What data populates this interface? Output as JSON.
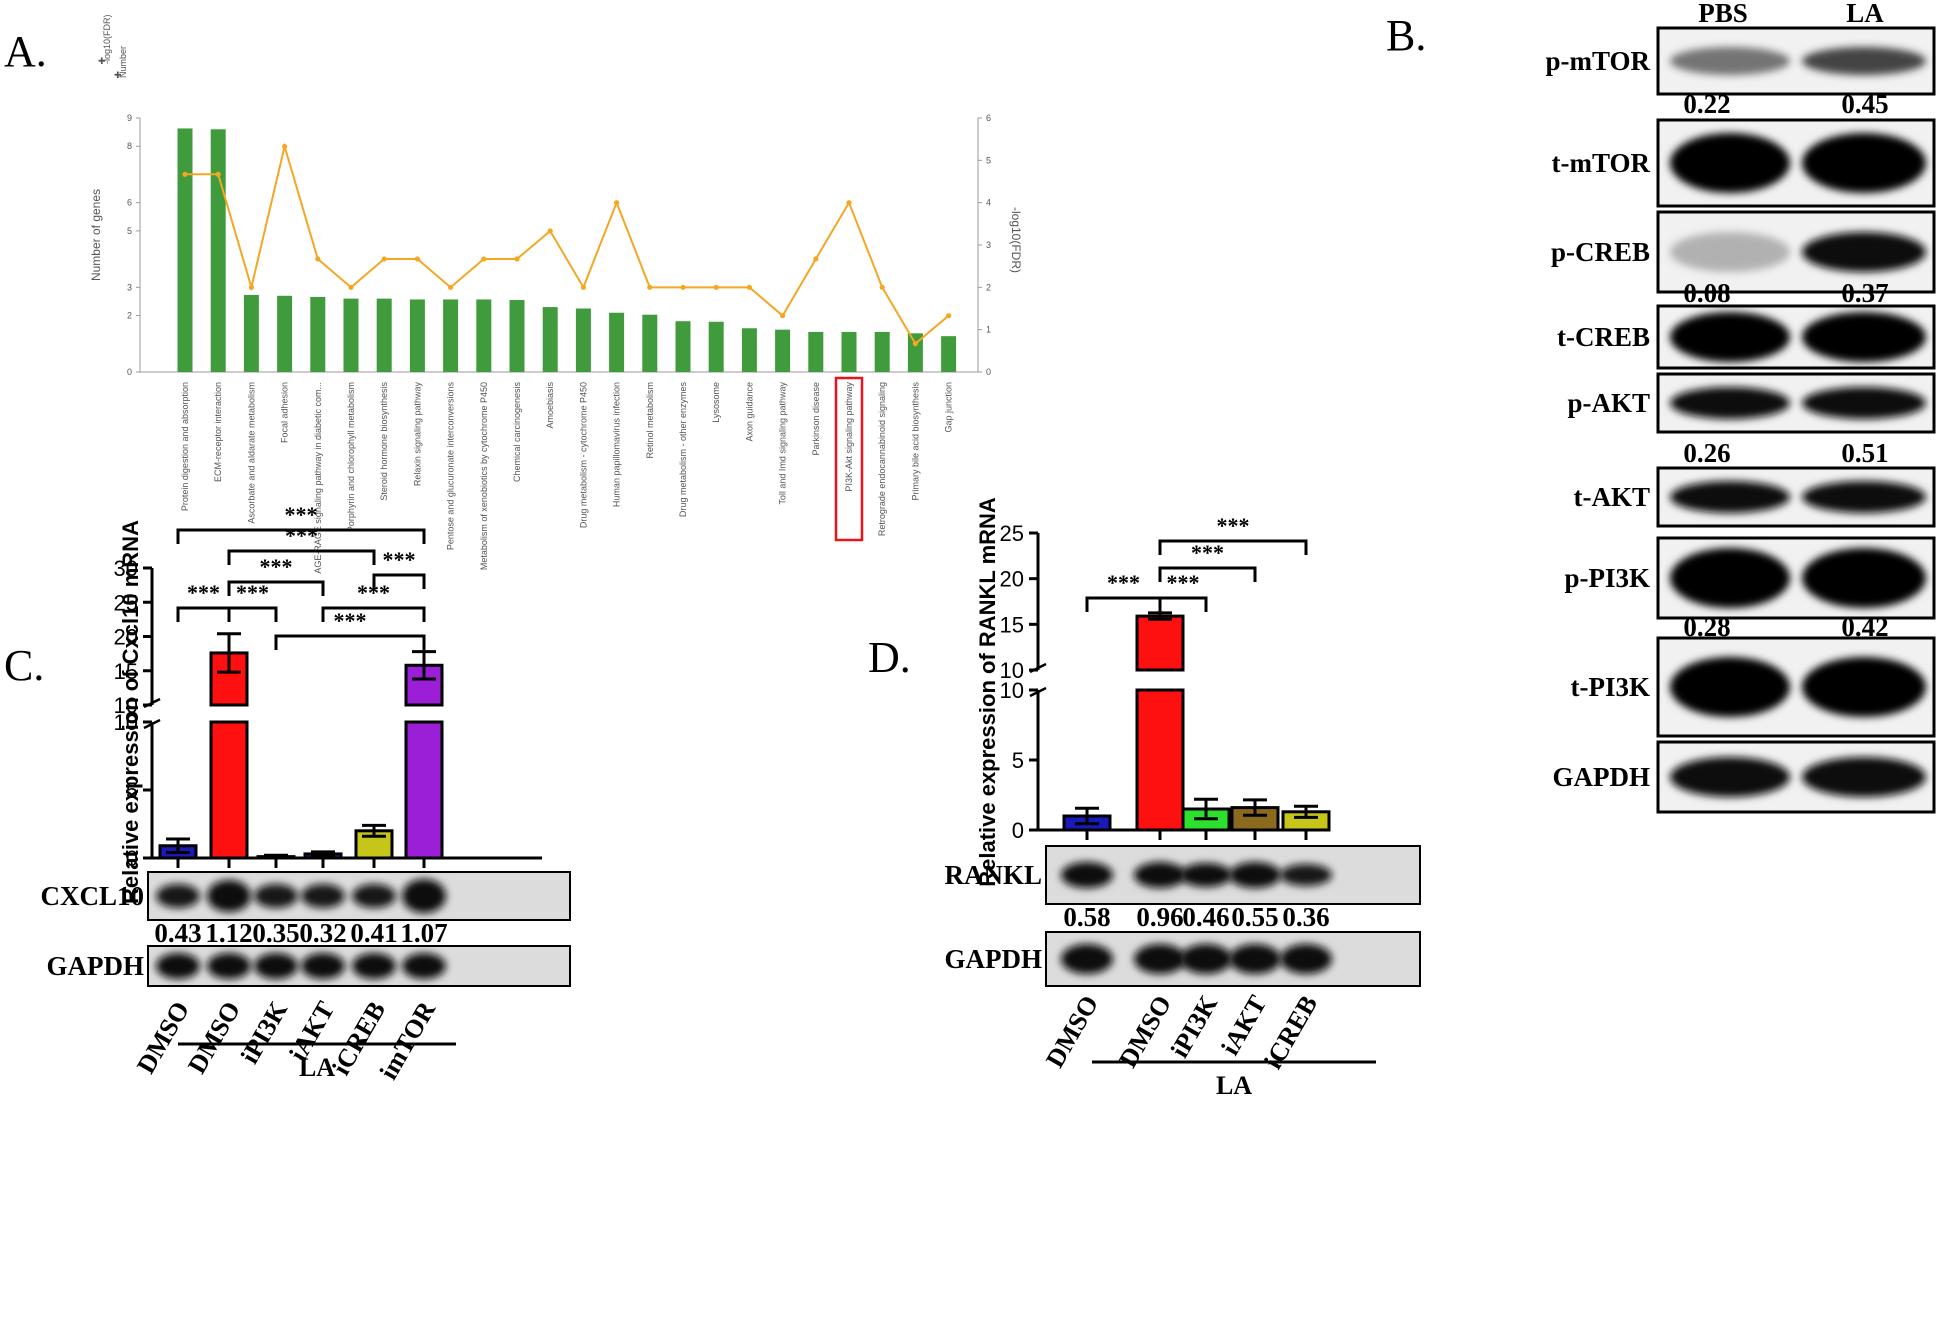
{
  "panels": {
    "a": "A.",
    "b": "B.",
    "c": "C.",
    "d": "D."
  },
  "colors": {
    "kegg_bar": "#3f9b3b",
    "kegg_line": "#f5a623",
    "kegg_axis": "#9a9a9a",
    "highlight_box": "#e8141b",
    "c_bars": [
      "#1a1ab8",
      "#ff1010",
      "#1a1ab8",
      "#1a1ab8",
      "#c5c51a",
      "#9b1fd6"
    ],
    "d_bars": [
      "#1a1ab8",
      "#ff1010",
      "#2de02d",
      "#8b6a1e",
      "#c5c51a"
    ]
  },
  "chart_data": [
    {
      "id": "A",
      "type": "bar",
      "title": "",
      "legend": [
        "-log10(FDR)",
        "Number"
      ],
      "xlabel": "",
      "ylabel": "Number of genes",
      "y2label": "-log10(FDR)",
      "ylim": [
        0,
        9
      ],
      "y2lim": [
        0,
        6
      ],
      "yticks": [
        0,
        2,
        3,
        5,
        6,
        8,
        9
      ],
      "y2ticks": [
        0,
        1,
        2,
        3,
        4,
        5,
        6
      ],
      "categories": [
        "Protein digestion and absorption",
        "ECM-receptor interaction",
        "Ascorbate and aldarate metabolism",
        "Focal adhesion",
        "AGE-RAGE signaling pathway in diabetic com...",
        "Porphyrin and chlorophyll metabolism",
        "Steroid hormone biosynthesis",
        "Relaxin signaling pathway",
        "Pentose and glucuronate interconversions",
        "Metabolism of xenobiotics by cytochrome P450",
        "Chemical carcinogenesis",
        "Amoebiasis",
        "Drug metabolism - cytochrome P450",
        "Human papillomavirus infection",
        "Retinol metabolism",
        "Drug metabolism - other enzymes",
        "Lysosome",
        "Axon guidance",
        "Toll and Imd signaling pathway",
        "Parkinson disease",
        "PI3K-Akt signaling pathway",
        "Retrograde endocannabinoid signaling",
        "Primary bile acid biosynthesis",
        "Gap junction"
      ],
      "highlighted_category": "PI3K-Akt signaling pathway",
      "series": [
        {
          "name": "-log10(FDR)",
          "kind": "bar",
          "axis": "left",
          "values": [
            8.63,
            8.6,
            2.73,
            2.7,
            2.66,
            2.6,
            2.6,
            2.57,
            2.57,
            2.57,
            2.55,
            2.3,
            2.25,
            2.1,
            2.03,
            1.8,
            1.78,
            1.55,
            1.5,
            1.42,
            1.42,
            1.42,
            1.37,
            1.27
          ]
        },
        {
          "name": "Number",
          "kind": "line",
          "axis": "right",
          "values": [
            4.67,
            4.67,
            2,
            5.33,
            2.67,
            2,
            2.67,
            2.67,
            2,
            2.67,
            2.67,
            3.33,
            2,
            4,
            2,
            2,
            2,
            2,
            1.33,
            2.67,
            4,
            2,
            0.67,
            1.33
          ]
        }
      ]
    },
    {
      "id": "C",
      "type": "bar",
      "title": "",
      "ylabel": "Relative expression of Cxcl10 mRNA",
      "axis_break": [
        10,
        10
      ],
      "ylim_lower": [
        0,
        10
      ],
      "ylim_upper": [
        10,
        30
      ],
      "yticks_lower": [
        0,
        5,
        10
      ],
      "yticks_upper": [
        10,
        15,
        20,
        25,
        30
      ],
      "categories": [
        "DMSO",
        "DMSO",
        "iPI3K",
        "iAKT",
        "iCREB",
        "imTOR"
      ],
      "group_label": "LA",
      "series": [
        {
          "name": "Cxcl10 mRNA",
          "values": [
            0.9,
            17.6,
            0.1,
            0.3,
            2.0,
            15.8
          ],
          "errors": [
            0.5,
            2.8,
            0.1,
            0.15,
            0.4,
            2.0
          ]
        }
      ],
      "significance": [
        {
          "from": 0,
          "to": 5,
          "label": "***"
        },
        {
          "from": 1,
          "to": 4,
          "label": "***"
        },
        {
          "from": 1,
          "to": 3,
          "label": "***"
        },
        {
          "from": 4,
          "to": 5,
          "label": "***"
        },
        {
          "from": 0,
          "to": 1,
          "label": "***"
        },
        {
          "from": 1,
          "to": 2,
          "label": "***"
        },
        {
          "from": 3,
          "to": 5,
          "label": "***"
        },
        {
          "from": 2,
          "to": 5,
          "label": "***"
        }
      ],
      "blot_labels": [
        "CXCL10",
        "GAPDH"
      ],
      "quant": [
        "0.43",
        "1.12",
        "0.35",
        "0.32",
        "0.41",
        "1.07"
      ]
    },
    {
      "id": "D",
      "type": "bar",
      "title": "",
      "ylabel": "Relative expression of RANKL mRNA",
      "axis_break": [
        10,
        10
      ],
      "ylim_lower": [
        0,
        10
      ],
      "ylim_upper": [
        10,
        25
      ],
      "yticks_lower": [
        0,
        5,
        10
      ],
      "yticks_upper": [
        10,
        15,
        20,
        25
      ],
      "categories": [
        "DMSO",
        "DMSO",
        "iPI3K",
        "iAKT",
        "iCREB"
      ],
      "group_label": "LA",
      "series": [
        {
          "name": "RANKL mRNA",
          "values": [
            1.0,
            15.9,
            1.5,
            1.6,
            1.3
          ],
          "errors": [
            0.55,
            0.35,
            0.7,
            0.55,
            0.4
          ]
        }
      ],
      "significance": [
        {
          "from": 1,
          "to": 4,
          "label": "***"
        },
        {
          "from": 1,
          "to": 3,
          "label": "***"
        },
        {
          "from": 0,
          "to": 1,
          "label": "***"
        },
        {
          "from": 1,
          "to": 2,
          "label": "***"
        }
      ],
      "blot_labels": [
        "RANKL",
        "GAPDH"
      ],
      "quant": [
        "0.58",
        "0.96",
        "0.46",
        "0.55",
        "0.36"
      ]
    },
    {
      "id": "B",
      "type": "table",
      "columns": [
        "PBS",
        "LA"
      ],
      "rows": [
        {
          "label": "p-mTOR",
          "quant": [
            "0.22",
            "0.45"
          ]
        },
        {
          "label": "t-mTOR"
        },
        {
          "label": "p-CREB",
          "quant": [
            "0.08",
            "0.37"
          ]
        },
        {
          "label": "t-CREB"
        },
        {
          "label": "p-AKT",
          "quant": [
            "0.26",
            "0.51"
          ]
        },
        {
          "label": "t-AKT"
        },
        {
          "label": "p-PI3K",
          "quant": [
            "0.28",
            "0.42"
          ]
        },
        {
          "label": "t-PI3K"
        },
        {
          "label": "GAPDH"
        }
      ]
    }
  ]
}
